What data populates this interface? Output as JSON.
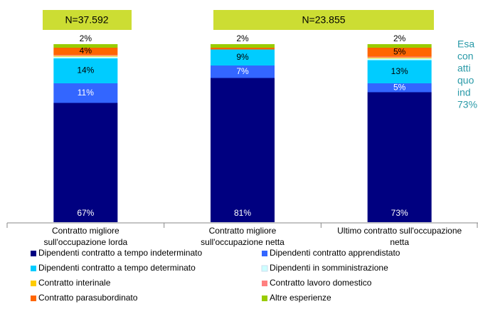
{
  "chart_data": {
    "type": "stacked_bar",
    "categories": [
      [
        "Contratto migliore",
        "sull'occupazione lorda"
      ],
      [
        "Contratto migliore",
        "sull'occupazione netta"
      ],
      [
        "Ultimo contratto sull'occupazione",
        "netta"
      ]
    ],
    "ylim": [
      0,
      100
    ],
    "series": [
      {
        "name": "Dipendenti contratto a tempo indeterminato",
        "color": "#000080",
        "values": [
          67,
          81,
          73
        ],
        "value_labels": [
          "67%",
          "81%",
          "73%"
        ]
      },
      {
        "name": "Dipendenti contratto apprendistato",
        "color": "#3366ff",
        "values": [
          11,
          7,
          5
        ],
        "value_labels": [
          "11%",
          "7%",
          "5%"
        ]
      },
      {
        "name": "Dipendenti contratto a tempo determinato",
        "color": "#00ccff",
        "values": [
          14,
          9,
          13
        ],
        "value_labels": [
          "14%",
          "9%",
          "13%"
        ]
      },
      {
        "name": "Dipendenti in somministrazione",
        "color": "#ccffff",
        "values": [
          1,
          0,
          1
        ],
        "value_labels": [
          null,
          null,
          null
        ]
      },
      {
        "name": "Contratto interinale",
        "color": "#ffcc00",
        "values": [
          0.5,
          0,
          0.5
        ],
        "value_labels": [
          null,
          null,
          null
        ]
      },
      {
        "name": "Contratto lavoro domestico",
        "color": "#ff8080",
        "values": [
          0.5,
          0,
          0.5
        ],
        "value_labels": [
          null,
          null,
          null
        ]
      },
      {
        "name": "Contratto parasubordinato",
        "color": "#ff6600",
        "values": [
          4,
          1,
          5
        ],
        "value_labels": [
          "4%",
          null,
          "5%"
        ]
      },
      {
        "name": "Altre esperienze",
        "color": "#99cc00",
        "values": [
          2,
          2,
          2
        ],
        "value_labels": [
          "2%",
          "2%",
          "2%"
        ]
      }
    ],
    "annotations": [
      "N=37.592",
      "N=23.855"
    ],
    "side_text": [
      "Esa",
      "con",
      "atti",
      "quo",
      "ind",
      "73%"
    ]
  }
}
